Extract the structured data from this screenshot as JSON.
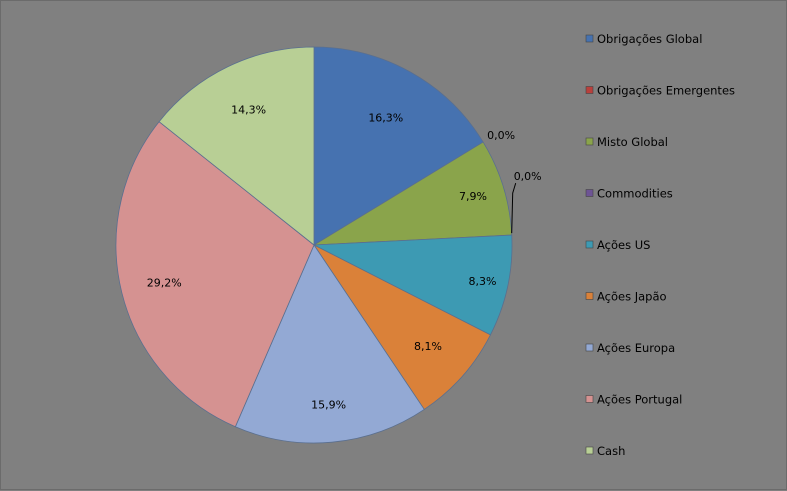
{
  "chart_data": {
    "type": "pie",
    "title": "",
    "legend_position": "right",
    "slices": [
      {
        "label": "Obrigações Global",
        "value": 16.3,
        "display": "16,3%",
        "color": "#4672b0"
      },
      {
        "label": "Obrigações Emergentes",
        "value": 0.0,
        "display": "0,0%",
        "color": "#b9403c"
      },
      {
        "label": "Misto Global",
        "value": 7.9,
        "display": "7,9%",
        "color": "#8aa44b"
      },
      {
        "label": "Commodities",
        "value": 0.0,
        "display": "0,0%",
        "color": "#6e5495"
      },
      {
        "label": "Ações US",
        "value": 8.3,
        "display": "8,3%",
        "color": "#3d9ab3"
      },
      {
        "label": "Ações Japão",
        "value": 8.1,
        "display": "8,1%",
        "color": "#da8139"
      },
      {
        "label": "Ações Europa",
        "value": 15.9,
        "display": "15,9%",
        "color": "#93a9d4"
      },
      {
        "label": "Ações Portugal",
        "value": 29.2,
        "display": "29,2%",
        "color": "#d59291"
      },
      {
        "label": "Cash",
        "value": 14.3,
        "display": "14,3%",
        "color": "#b8cf95"
      }
    ]
  }
}
